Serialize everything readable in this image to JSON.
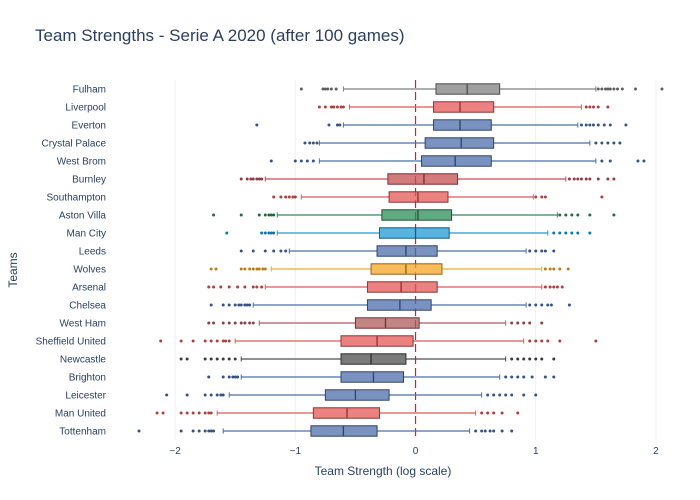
{
  "chart_data": {
    "type": "box",
    "orientation": "horizontal",
    "title": "Team Strengths - Serie A 2020 (after 100 games)",
    "xlabel": "Team Strength (log scale)",
    "ylabel": "Teams",
    "xlim": [
      -2.5,
      2.2
    ],
    "xticks": [
      -2,
      -1,
      0,
      1,
      2
    ],
    "reference_line": {
      "x": 0,
      "color": "#e31a1c",
      "style": "dashed"
    },
    "grid": true,
    "legend": "none",
    "series": [
      {
        "category": "Fulham",
        "color": "#7f7f7f",
        "min": -0.6,
        "q1": 0.17,
        "median": 0.43,
        "q3": 0.7,
        "max": 1.5,
        "outliers": [
          -0.95,
          -0.77,
          -0.75,
          -0.73,
          -0.7,
          -0.66,
          1.52,
          1.55,
          1.58,
          1.6,
          1.62,
          1.65,
          1.68,
          1.72,
          1.83,
          2.05
        ]
      },
      {
        "category": "Liverpool",
        "color": "#e45756",
        "min": -0.55,
        "q1": 0.15,
        "median": 0.37,
        "q3": 0.65,
        "max": 1.38,
        "outliers": [
          -0.8,
          -0.75,
          -0.7,
          -0.68,
          -0.65,
          -0.62,
          -0.6,
          1.42,
          1.45,
          1.48,
          1.52,
          1.6
        ]
      },
      {
        "category": "Everton",
        "color": "#4c6eab",
        "min": -0.6,
        "q1": 0.15,
        "median": 0.37,
        "q3": 0.63,
        "max": 1.35,
        "outliers": [
          -1.32,
          -0.72,
          -0.65,
          -0.63,
          1.38,
          1.42,
          1.45,
          1.48,
          1.52,
          1.57,
          1.62,
          1.75
        ]
      },
      {
        "category": "Crystal Palace",
        "color": "#4c6eab",
        "min": -0.8,
        "q1": 0.08,
        "median": 0.38,
        "q3": 0.65,
        "max": 1.45,
        "outliers": [
          -0.92,
          -0.88,
          -0.85,
          -0.82,
          1.5,
          1.55,
          1.6,
          1.65,
          1.7
        ]
      },
      {
        "category": "West Brom",
        "color": "#4c6eab",
        "min": -0.8,
        "q1": 0.05,
        "median": 0.33,
        "q3": 0.63,
        "max": 1.5,
        "outliers": [
          -1.2,
          -1.0,
          -0.95,
          -0.9,
          -0.85,
          1.55,
          1.62,
          1.85,
          1.9
        ]
      },
      {
        "category": "Burnley",
        "color": "#c44e52",
        "min": -1.25,
        "q1": -0.23,
        "median": 0.07,
        "q3": 0.35,
        "max": 1.25,
        "outliers": [
          -1.45,
          -1.4,
          -1.37,
          -1.35,
          -1.32,
          -1.3,
          -1.28,
          1.28,
          1.32,
          1.35,
          1.38,
          1.42,
          1.45,
          1.52,
          1.6,
          1.65
        ]
      },
      {
        "category": "Southampton",
        "color": "#e45756",
        "min": -0.95,
        "q1": -0.22,
        "median": 0.02,
        "q3": 0.27,
        "max": 0.98,
        "outliers": [
          -1.18,
          -1.12,
          -1.08,
          -1.05,
          -1.02,
          -1.0,
          1.0,
          1.05,
          1.08,
          1.55
        ]
      },
      {
        "category": "Aston Villa",
        "color": "#2e8b57",
        "min": -1.15,
        "q1": -0.28,
        "median": 0.02,
        "q3": 0.3,
        "max": 1.18,
        "outliers": [
          -1.68,
          -1.45,
          -1.3,
          -1.25,
          -1.22,
          -1.2,
          -1.18,
          1.2,
          1.25,
          1.3,
          1.35,
          1.45,
          1.65
        ]
      },
      {
        "category": "Man City",
        "color": "#1f9bd7",
        "min": -1.15,
        "q1": -0.3,
        "median": 0.0,
        "q3": 0.28,
        "max": 1.1,
        "outliers": [
          -1.57,
          -1.28,
          -1.25,
          -1.22,
          -1.2,
          -1.18,
          1.15,
          1.2,
          1.25,
          1.3,
          1.35,
          1.45
        ]
      },
      {
        "category": "Leeds",
        "color": "#4c6eab",
        "min": -1.05,
        "q1": -0.32,
        "median": -0.08,
        "q3": 0.18,
        "max": 0.92,
        "outliers": [
          -1.45,
          -1.35,
          -1.25,
          -1.18,
          -1.12,
          -1.08,
          0.95,
          1.0,
          1.05,
          1.08,
          1.15
        ]
      },
      {
        "category": "Wolves",
        "color": "#f5a623",
        "min": -1.2,
        "q1": -0.37,
        "median": -0.08,
        "q3": 0.22,
        "max": 1.05,
        "outliers": [
          -1.7,
          -1.66,
          -1.45,
          -1.42,
          -1.38,
          -1.35,
          -1.32,
          -1.3,
          -1.27,
          -1.25,
          1.08,
          1.12,
          1.15,
          1.2,
          1.27
        ]
      },
      {
        "category": "Arsenal",
        "color": "#e45756",
        "min": -1.25,
        "q1": -0.4,
        "median": -0.12,
        "q3": 0.18,
        "max": 1.05,
        "outliers": [
          -1.72,
          -1.68,
          -1.62,
          -1.55,
          -1.48,
          -1.42,
          -1.35,
          -1.32,
          -1.28,
          1.08,
          1.12,
          1.15,
          1.18,
          1.22
        ]
      },
      {
        "category": "Chelsea",
        "color": "#4c6eab",
        "min": -1.35,
        "q1": -0.4,
        "median": -0.13,
        "q3": 0.13,
        "max": 0.92,
        "outliers": [
          -1.7,
          -1.6,
          -1.55,
          -1.5,
          -1.47,
          -1.45,
          -1.42,
          -1.4,
          -1.38,
          0.95,
          1.0,
          1.05,
          1.1,
          1.13,
          1.28
        ]
      },
      {
        "category": "West Ham",
        "color": "#b05b5b",
        "min": -1.3,
        "q1": -0.5,
        "median": -0.25,
        "q3": 0.03,
        "max": 0.75,
        "outliers": [
          -1.72,
          -1.68,
          -1.6,
          -1.55,
          -1.5,
          -1.45,
          -1.42,
          -1.38,
          -1.35,
          0.8,
          0.85,
          0.9,
          0.95,
          1.05
        ]
      },
      {
        "category": "Sheffield United",
        "color": "#e45756",
        "min": -1.5,
        "q1": -0.62,
        "median": -0.32,
        "q3": -0.02,
        "max": 0.9,
        "outliers": [
          -2.12,
          -1.95,
          -1.85,
          -1.75,
          -1.7,
          -1.65,
          -1.6,
          -1.58,
          -1.55,
          0.95,
          1.0,
          1.05,
          1.1,
          1.2,
          1.5
        ]
      },
      {
        "category": "Newcastle",
        "color": "#4d4d4d",
        "min": -1.45,
        "q1": -0.62,
        "median": -0.37,
        "q3": -0.08,
        "max": 0.75,
        "outliers": [
          -1.95,
          -1.9,
          -1.75,
          -1.7,
          -1.65,
          -1.6,
          -1.55,
          -1.5,
          0.8,
          0.85,
          0.9,
          0.95,
          1.0,
          1.05,
          1.15
        ]
      },
      {
        "category": "Brighton",
        "color": "#4c6eab",
        "min": -1.45,
        "q1": -0.62,
        "median": -0.35,
        "q3": -0.1,
        "max": 0.7,
        "outliers": [
          -1.72,
          -1.6,
          -1.55,
          -1.52,
          -1.5,
          -1.48,
          0.75,
          0.8,
          0.85,
          0.9,
          0.97,
          1.08,
          1.15
        ]
      },
      {
        "category": "Leicester",
        "color": "#4c6eab",
        "min": -1.55,
        "q1": -0.75,
        "median": -0.5,
        "q3": -0.22,
        "max": 0.55,
        "outliers": [
          -2.07,
          -1.9,
          -1.75,
          -1.7,
          -1.65,
          -1.62,
          -1.6,
          0.6,
          0.65,
          0.7,
          0.75,
          0.8,
          0.9,
          1.0
        ]
      },
      {
        "category": "Man United",
        "color": "#e45756",
        "min": -1.65,
        "q1": -0.85,
        "median": -0.57,
        "q3": -0.3,
        "max": 0.5,
        "outliers": [
          -2.15,
          -2.1,
          -1.95,
          -1.9,
          -1.85,
          -1.8,
          -1.75,
          -1.72,
          -1.7,
          0.55,
          0.6,
          0.65,
          0.72,
          0.85
        ]
      },
      {
        "category": "Tottenham",
        "color": "#4c6eab",
        "min": -1.6,
        "q1": -0.87,
        "median": -0.6,
        "q3": -0.32,
        "max": 0.45,
        "outliers": [
          -2.3,
          -1.95,
          -1.85,
          -1.8,
          -1.75,
          -1.72,
          -1.7,
          -1.68,
          0.5,
          0.55,
          0.58,
          0.62,
          0.65,
          0.72,
          0.8
        ]
      }
    ]
  }
}
